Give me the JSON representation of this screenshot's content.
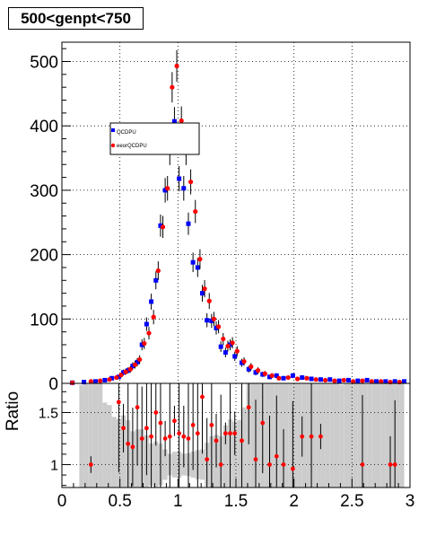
{
  "title": "500<genpt<750",
  "chart_data": [
    {
      "type": "scatter",
      "title": "500<genpt<750",
      "xlim": [
        0,
        3
      ],
      "ylim": [
        0,
        530
      ],
      "yticks": [
        0,
        100,
        200,
        300,
        400,
        500
      ],
      "grid": true,
      "legend_position": "upper-left",
      "series": [
        {
          "name": "QCDPU",
          "color": "#0000ff",
          "marker": "square",
          "x": [
            0.09,
            0.19,
            0.29,
            0.37,
            0.43,
            0.49,
            0.53,
            0.57,
            0.61,
            0.65,
            0.69,
            0.73,
            0.77,
            0.81,
            0.85,
            0.89,
            0.93,
            0.97,
            1.01,
            1.05,
            1.09,
            1.13,
            1.17,
            1.21,
            1.25,
            1.29,
            1.33,
            1.37,
            1.41,
            1.45,
            1.49,
            1.55,
            1.61,
            1.67,
            1.73,
            1.79,
            1.85,
            1.91,
            1.99,
            2.07,
            2.15,
            2.23,
            2.31,
            2.39,
            2.47,
            2.55,
            2.63,
            2.71,
            2.79,
            2.87,
            2.95
          ],
          "y": [
            1,
            2,
            3,
            5,
            8,
            10,
            17,
            20,
            27,
            33,
            60,
            92,
            127,
            160,
            245,
            300,
            360,
            407,
            318,
            303,
            248,
            188,
            180,
            140,
            98,
            97,
            86,
            57,
            48,
            60,
            42,
            32,
            22,
            17,
            14,
            10,
            12,
            8,
            12,
            9,
            7,
            6,
            6,
            4,
            5,
            4,
            5,
            3,
            3,
            3,
            3
          ]
        },
        {
          "name": "eeorQCDPU",
          "color": "#ff0000",
          "marker": "circle",
          "x": [
            0.09,
            0.25,
            0.33,
            0.41,
            0.47,
            0.51,
            0.55,
            0.59,
            0.63,
            0.67,
            0.71,
            0.75,
            0.79,
            0.83,
            0.87,
            0.91,
            0.95,
            0.99,
            1.03,
            1.07,
            1.11,
            1.15,
            1.19,
            1.23,
            1.27,
            1.31,
            1.35,
            1.39,
            1.43,
            1.47,
            1.51,
            1.57,
            1.63,
            1.69,
            1.75,
            1.81,
            1.87,
            1.95,
            2.03,
            2.11,
            2.19,
            2.27,
            2.35,
            2.43,
            2.51,
            2.59,
            2.67,
            2.75,
            2.83,
            2.91
          ],
          "y": [
            1,
            3,
            4,
            6,
            9,
            13,
            18,
            22,
            29,
            37,
            62,
            78,
            103,
            175,
            243,
            303,
            460,
            493,
            408,
            360,
            313,
            267,
            193,
            147,
            128,
            100,
            88,
            69,
            58,
            63,
            50,
            34,
            26,
            20,
            15,
            12,
            8,
            9,
            7,
            8,
            6,
            5,
            4,
            5,
            3,
            4,
            3,
            3,
            2,
            2
          ]
        }
      ]
    },
    {
      "type": "scatter",
      "ylabel": "Ratio",
      "xlim": [
        0,
        3
      ],
      "ylim": [
        0.78,
        1.78
      ],
      "yticks": [
        1,
        1.5
      ],
      "xticks": [
        "0",
        "0.5",
        "1",
        "1.5",
        "2",
        "2.5",
        "3"
      ],
      "grid": true,
      "band_color": "#cccccc",
      "point_color": "#ff0000",
      "points": {
        "x": [
          0.25,
          0.49,
          0.53,
          0.57,
          0.61,
          0.65,
          0.69,
          0.73,
          0.77,
          0.81,
          0.85,
          0.89,
          0.93,
          0.97,
          1.01,
          1.05,
          1.09,
          1.13,
          1.17,
          1.21,
          1.25,
          1.29,
          1.33,
          1.37,
          1.41,
          1.45,
          1.49,
          1.55,
          1.61,
          1.67,
          1.73,
          1.79,
          1.85,
          1.91,
          1.99,
          2.07,
          2.15,
          2.23,
          2.59,
          2.83,
          2.87
        ],
        "y": [
          1.0,
          1.6,
          1.35,
          1.2,
          1.17,
          1.55,
          1.25,
          1.35,
          1.27,
          1.5,
          1.4,
          1.25,
          1.27,
          1.42,
          1.3,
          1.27,
          1.25,
          1.38,
          1.3,
          1.65,
          1.05,
          1.38,
          1.23,
          1.0,
          1.3,
          1.3,
          1.3,
          1.23,
          1.55,
          1.05,
          1.4,
          1.0,
          1.08,
          1.0,
          0.96,
          1.27,
          1.27,
          1.27,
          1.0,
          1.0,
          1.0
        ]
      }
    }
  ],
  "legend": {
    "entries": [
      "QCDPU",
      "eeorQCDPU"
    ]
  },
  "axes": {
    "ratio_label": "Ratio"
  }
}
